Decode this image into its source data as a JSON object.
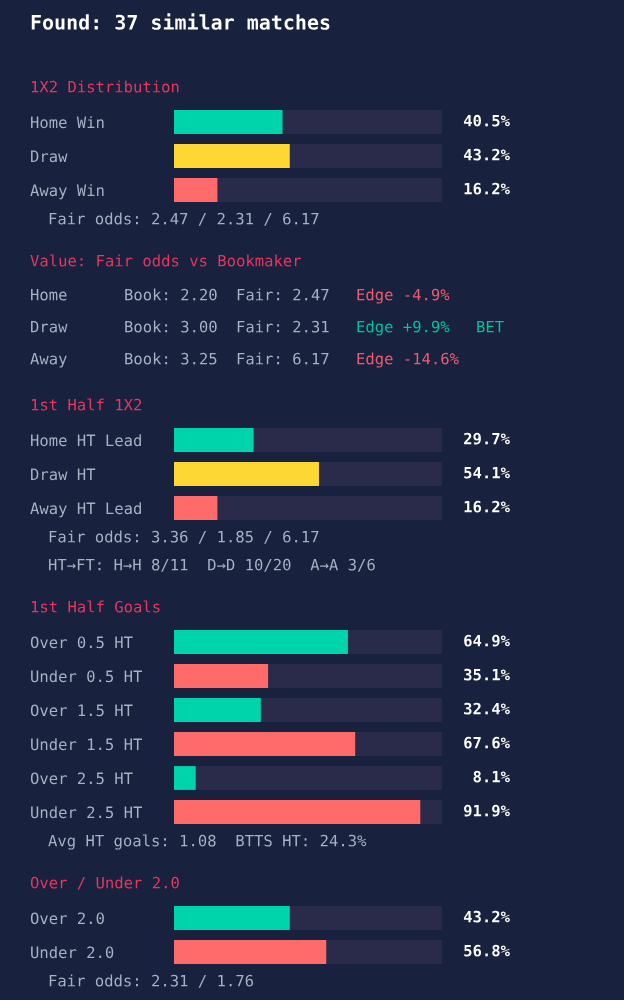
{
  "chart_data": [
    {
      "type": "other",
      "title": "Found: 37 similar matches"
    },
    {
      "type": "bar",
      "orientation": "horizontal",
      "title": "1X2 Distribution",
      "categories": [
        "Home Win",
        "Draw",
        "Away Win"
      ],
      "values": [
        40.5,
        43.2,
        16.2
      ],
      "colors": [
        "#00d4aa",
        "#fdd835",
        "#ff6b6b"
      ],
      "value_labels": [
        "40.5%",
        "43.2%",
        "16.2%"
      ],
      "xlim": [
        0,
        100
      ],
      "tick_labels": "y",
      "annotations": [
        "Fair odds: 2.47 / 2.31 / 6.17"
      ]
    },
    {
      "type": "other",
      "title": "Value: Fair odds vs Bookmaker",
      "annotations": [
        "Home",
        "Book: 2.20",
        "Fair: 2.47",
        "Edge -4.9%"
      ],
      "colors": [
        "#a9b1c4",
        "#a9b1c4",
        "#a9b1c4",
        "#f25c6e"
      ]
    },
    {
      "type": "other",
      "annotations": [
        "Draw",
        "Book: 3.00",
        "Fair: 2.31",
        "Edge +9.9%",
        "BET"
      ],
      "colors": [
        "#a9b1c4",
        "#a9b1c4",
        "#a9b1c4",
        "#00c49a",
        "#00c49a"
      ]
    },
    {
      "type": "other",
      "annotations": [
        "Away",
        "Book: 3.25",
        "Fair: 6.17",
        "Edge -14.6%"
      ],
      "colors": [
        "#a9b1c4",
        "#a9b1c4",
        "#a9b1c4",
        "#f25c6e"
      ]
    },
    {
      "type": "bar",
      "orientation": "horizontal",
      "title": "1st Half 1X2",
      "categories": [
        "Home HT Lead",
        "Draw HT",
        "Away HT Lead"
      ],
      "values": [
        29.7,
        54.1,
        16.2
      ],
      "colors": [
        "#00d4aa",
        "#fdd835",
        "#ff6b6b"
      ],
      "value_labels": [
        "29.7%",
        "54.1%",
        "16.2%"
      ],
      "xlim": [
        0,
        100
      ],
      "tick_labels": "y",
      "annotations": [
        "Fair odds: 3.36 / 1.85 / 6.17",
        "HT→FT: H→H 8/11  D→D 10/20  A→A 3/6"
      ]
    },
    {
      "type": "bar",
      "orientation": "horizontal",
      "title": "1st Half Goals",
      "categories": [
        "Over 0.5 HT",
        "Under 0.5 HT",
        "Over 1.5 HT",
        "Under 1.5 HT",
        "Over 2.5 HT",
        "Under 2.5 HT"
      ],
      "values": [
        64.9,
        35.1,
        32.4,
        67.6,
        8.1,
        91.9
      ],
      "colors": [
        "#00d4aa",
        "#ff6b6b",
        "#00d4aa",
        "#ff6b6b",
        "#00d4aa",
        "#ff6b6b"
      ],
      "value_labels": [
        "64.9%",
        "35.1%",
        "32.4%",
        "67.6%",
        "8.1%",
        "91.9%"
      ],
      "xlim": [
        0,
        100
      ],
      "tick_labels": "y",
      "annotations": [
        "Avg HT goals: 1.08  BTTS HT: 24.3%"
      ]
    },
    {
      "type": "bar",
      "orientation": "horizontal",
      "title": "Over / Under 2.0",
      "categories": [
        "Over 2.0",
        "Under 2.0"
      ],
      "values": [
        43.2,
        56.8
      ],
      "colors": [
        "#00d4aa",
        "#ff6b6b"
      ],
      "value_labels": [
        "43.2%",
        "56.8%"
      ],
      "xlim": [
        0,
        100
      ],
      "tick_labels": "y",
      "annotations": [
        "Fair odds: 2.31 / 1.76"
      ]
    }
  ]
}
